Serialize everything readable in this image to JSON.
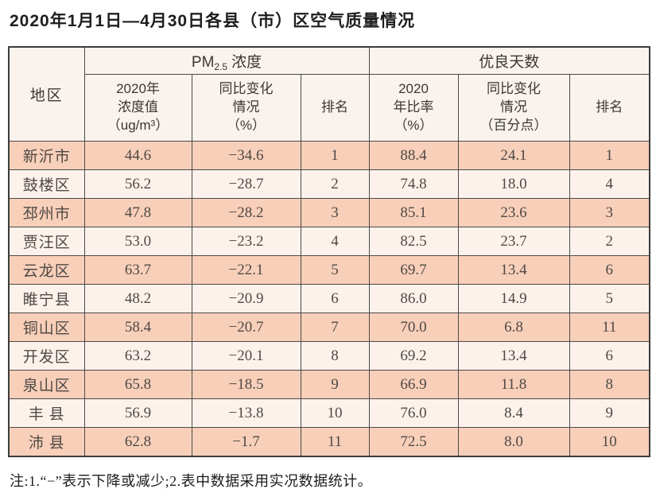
{
  "title": "2020年1月1日—4月30日各县（市）区空气质量情况",
  "table": {
    "region_header": "地区",
    "pm_group": {
      "main": "PM",
      "sub": "2.5",
      "rest": "浓度"
    },
    "days_group": "优良天数",
    "sub_headers": {
      "pm_value": "2020年\n浓度值\n（ug/m³）",
      "pm_change": "同比变化\n情况\n（%）",
      "pm_rank": "排名",
      "days_rate": "2020\n年比率\n（%）",
      "days_change": "同比变化\n情况\n（百分点）",
      "days_rank": "排名"
    },
    "rows": [
      {
        "region": "新沂市",
        "pm_value": "44.6",
        "pm_change": "−34.6",
        "pm_rank": "1",
        "days_rate": "88.4",
        "days_change": "24.1",
        "days_rank": "1"
      },
      {
        "region": "鼓楼区",
        "pm_value": "56.2",
        "pm_change": "−28.7",
        "pm_rank": "2",
        "days_rate": "74.8",
        "days_change": "18.0",
        "days_rank": "4"
      },
      {
        "region": "邳州市",
        "pm_value": "47.8",
        "pm_change": "−28.2",
        "pm_rank": "3",
        "days_rate": "85.1",
        "days_change": "23.6",
        "days_rank": "3"
      },
      {
        "region": "贾汪区",
        "pm_value": "53.0",
        "pm_change": "−23.2",
        "pm_rank": "4",
        "days_rate": "82.5",
        "days_change": "23.7",
        "days_rank": "2"
      },
      {
        "region": "云龙区",
        "pm_value": "63.7",
        "pm_change": "−22.1",
        "pm_rank": "5",
        "days_rate": "69.7",
        "days_change": "13.4",
        "days_rank": "6"
      },
      {
        "region": "睢宁县",
        "pm_value": "48.2",
        "pm_change": "−20.9",
        "pm_rank": "6",
        "days_rate": "86.0",
        "days_change": "14.9",
        "days_rank": "5"
      },
      {
        "region": "铜山区",
        "pm_value": "58.4",
        "pm_change": "−20.7",
        "pm_rank": "7",
        "days_rate": "70.0",
        "days_change": "6.8",
        "days_rank": "11"
      },
      {
        "region": "开发区",
        "pm_value": "63.2",
        "pm_change": "−20.1",
        "pm_rank": "8",
        "days_rate": "69.2",
        "days_change": "13.4",
        "days_rank": "6"
      },
      {
        "region": "泉山区",
        "pm_value": "65.8",
        "pm_change": "−18.5",
        "pm_rank": "9",
        "days_rate": "66.9",
        "days_change": "11.8",
        "days_rank": "8"
      },
      {
        "region": "丰 县",
        "pm_value": "56.9",
        "pm_change": "−13.8",
        "pm_rank": "10",
        "days_rate": "76.0",
        "days_change": "8.4",
        "days_rank": "9"
      },
      {
        "region": "沛 县",
        "pm_value": "62.8",
        "pm_change": "−1.7",
        "pm_rank": "11",
        "days_rate": "72.5",
        "days_change": "8.0",
        "days_rank": "10"
      }
    ]
  },
  "footnote": "注:1.“−”表示下降或减少;2.表中数据采用实况数据统计。"
}
